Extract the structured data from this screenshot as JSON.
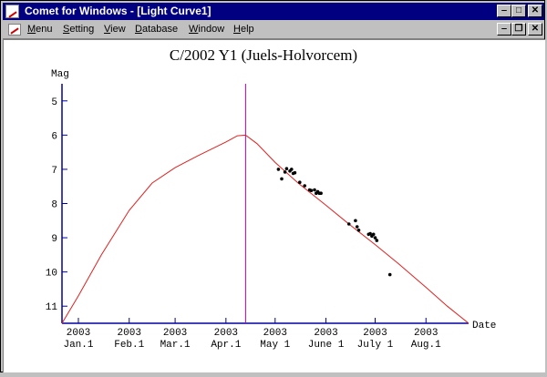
{
  "window": {
    "title": "Comet for Windows - [Light Curve1]"
  },
  "menubar": {
    "items": [
      {
        "label": "Menu",
        "mnemonic": "M",
        "rest": "enu"
      },
      {
        "label": "Setting",
        "mnemonic": "S",
        "rest": "etting"
      },
      {
        "label": "View",
        "mnemonic": "V",
        "rest": "iew"
      },
      {
        "label": "Database",
        "mnemonic": "D",
        "rest": "atabase"
      },
      {
        "label": "Window",
        "mnemonic": "W",
        "rest": "indow"
      },
      {
        "label": "Help",
        "mnemonic": "H",
        "rest": "elp"
      }
    ]
  },
  "icons": {
    "minimize": "minimize-icon",
    "maximize": "maximize-icon",
    "restore": "restore-icon",
    "close": "close-icon"
  },
  "colors": {
    "titlebar": "#000080",
    "curve": "#e02020",
    "today_line": "#c000c0",
    "axis": "#0000a0",
    "points": "#000000"
  },
  "chart_data": {
    "type": "line",
    "title": "C/2002 Y1 (Juels-Holvorcem)",
    "ylabel": "Mag",
    "xlabel": "Date",
    "y_inverted": true,
    "ylim": [
      4.5,
      11.5
    ],
    "yticks": [
      5,
      6,
      7,
      8,
      9,
      10,
      11
    ],
    "xlim": [
      "2002-12-22",
      "2003-08-27"
    ],
    "xticks": [
      {
        "date": "2003-01-01",
        "year": "2003",
        "label": "Jan.1"
      },
      {
        "date": "2003-02-01",
        "year": "2003",
        "label": "Feb.1"
      },
      {
        "date": "2003-03-01",
        "year": "2003",
        "label": "Mar.1"
      },
      {
        "date": "2003-04-01",
        "year": "2003",
        "label": "Apr.1"
      },
      {
        "date": "2003-05-01",
        "year": "2003",
        "label": "May 1"
      },
      {
        "date": "2003-06-01",
        "year": "2003",
        "label": "June 1"
      },
      {
        "date": "2003-07-01",
        "year": "2003",
        "label": "July 1"
      },
      {
        "date": "2003-08-01",
        "year": "2003",
        "label": "Aug.1"
      }
    ],
    "today_line": "2003-04-13",
    "predicted_curve": [
      {
        "x": "2002-12-22",
        "y": 11.5
      },
      {
        "x": "2003-01-01",
        "y": 10.7
      },
      {
        "x": "2003-01-15",
        "y": 9.5
      },
      {
        "x": "2003-02-01",
        "y": 8.2
      },
      {
        "x": "2003-02-15",
        "y": 7.4
      },
      {
        "x": "2003-03-01",
        "y": 6.95
      },
      {
        "x": "2003-03-15",
        "y": 6.6
      },
      {
        "x": "2003-04-01",
        "y": 6.2
      },
      {
        "x": "2003-04-08",
        "y": 6.02
      },
      {
        "x": "2003-04-13",
        "y": 6.0
      },
      {
        "x": "2003-04-20",
        "y": 6.25
      },
      {
        "x": "2003-05-01",
        "y": 6.8
      },
      {
        "x": "2003-05-15",
        "y": 7.4
      },
      {
        "x": "2003-06-01",
        "y": 8.05
      },
      {
        "x": "2003-06-15",
        "y": 8.6
      },
      {
        "x": "2003-07-01",
        "y": 9.2
      },
      {
        "x": "2003-07-15",
        "y": 9.75
      },
      {
        "x": "2003-08-01",
        "y": 10.45
      },
      {
        "x": "2003-08-14",
        "y": 11.0
      },
      {
        "x": "2003-08-27",
        "y": 11.5
      }
    ],
    "observations": [
      {
        "x": "2003-05-03",
        "y": 7.0
      },
      {
        "x": "2003-05-05",
        "y": 7.28
      },
      {
        "x": "2003-05-07",
        "y": 7.08
      },
      {
        "x": "2003-05-08",
        "y": 6.98
      },
      {
        "x": "2003-05-10",
        "y": 7.05
      },
      {
        "x": "2003-05-11",
        "y": 7.0
      },
      {
        "x": "2003-05-12",
        "y": 7.12
      },
      {
        "x": "2003-05-13",
        "y": 7.1
      },
      {
        "x": "2003-05-16",
        "y": 7.38
      },
      {
        "x": "2003-05-19",
        "y": 7.48
      },
      {
        "x": "2003-05-22",
        "y": 7.6
      },
      {
        "x": "2003-05-23",
        "y": 7.62
      },
      {
        "x": "2003-05-25",
        "y": 7.6
      },
      {
        "x": "2003-05-26",
        "y": 7.7
      },
      {
        "x": "2003-05-27",
        "y": 7.65
      },
      {
        "x": "2003-05-28",
        "y": 7.7
      },
      {
        "x": "2003-05-29",
        "y": 7.7
      },
      {
        "x": "2003-06-15",
        "y": 8.6
      },
      {
        "x": "2003-06-19",
        "y": 8.5
      },
      {
        "x": "2003-06-20",
        "y": 8.68
      },
      {
        "x": "2003-06-21",
        "y": 8.78
      },
      {
        "x": "2003-06-27",
        "y": 8.9
      },
      {
        "x": "2003-06-28",
        "y": 8.88
      },
      {
        "x": "2003-06-29",
        "y": 8.95
      },
      {
        "x": "2003-06-30",
        "y": 8.9
      },
      {
        "x": "2003-07-01",
        "y": 9.0
      },
      {
        "x": "2003-07-02",
        "y": 9.08
      },
      {
        "x": "2003-07-10",
        "y": 10.08
      }
    ]
  }
}
